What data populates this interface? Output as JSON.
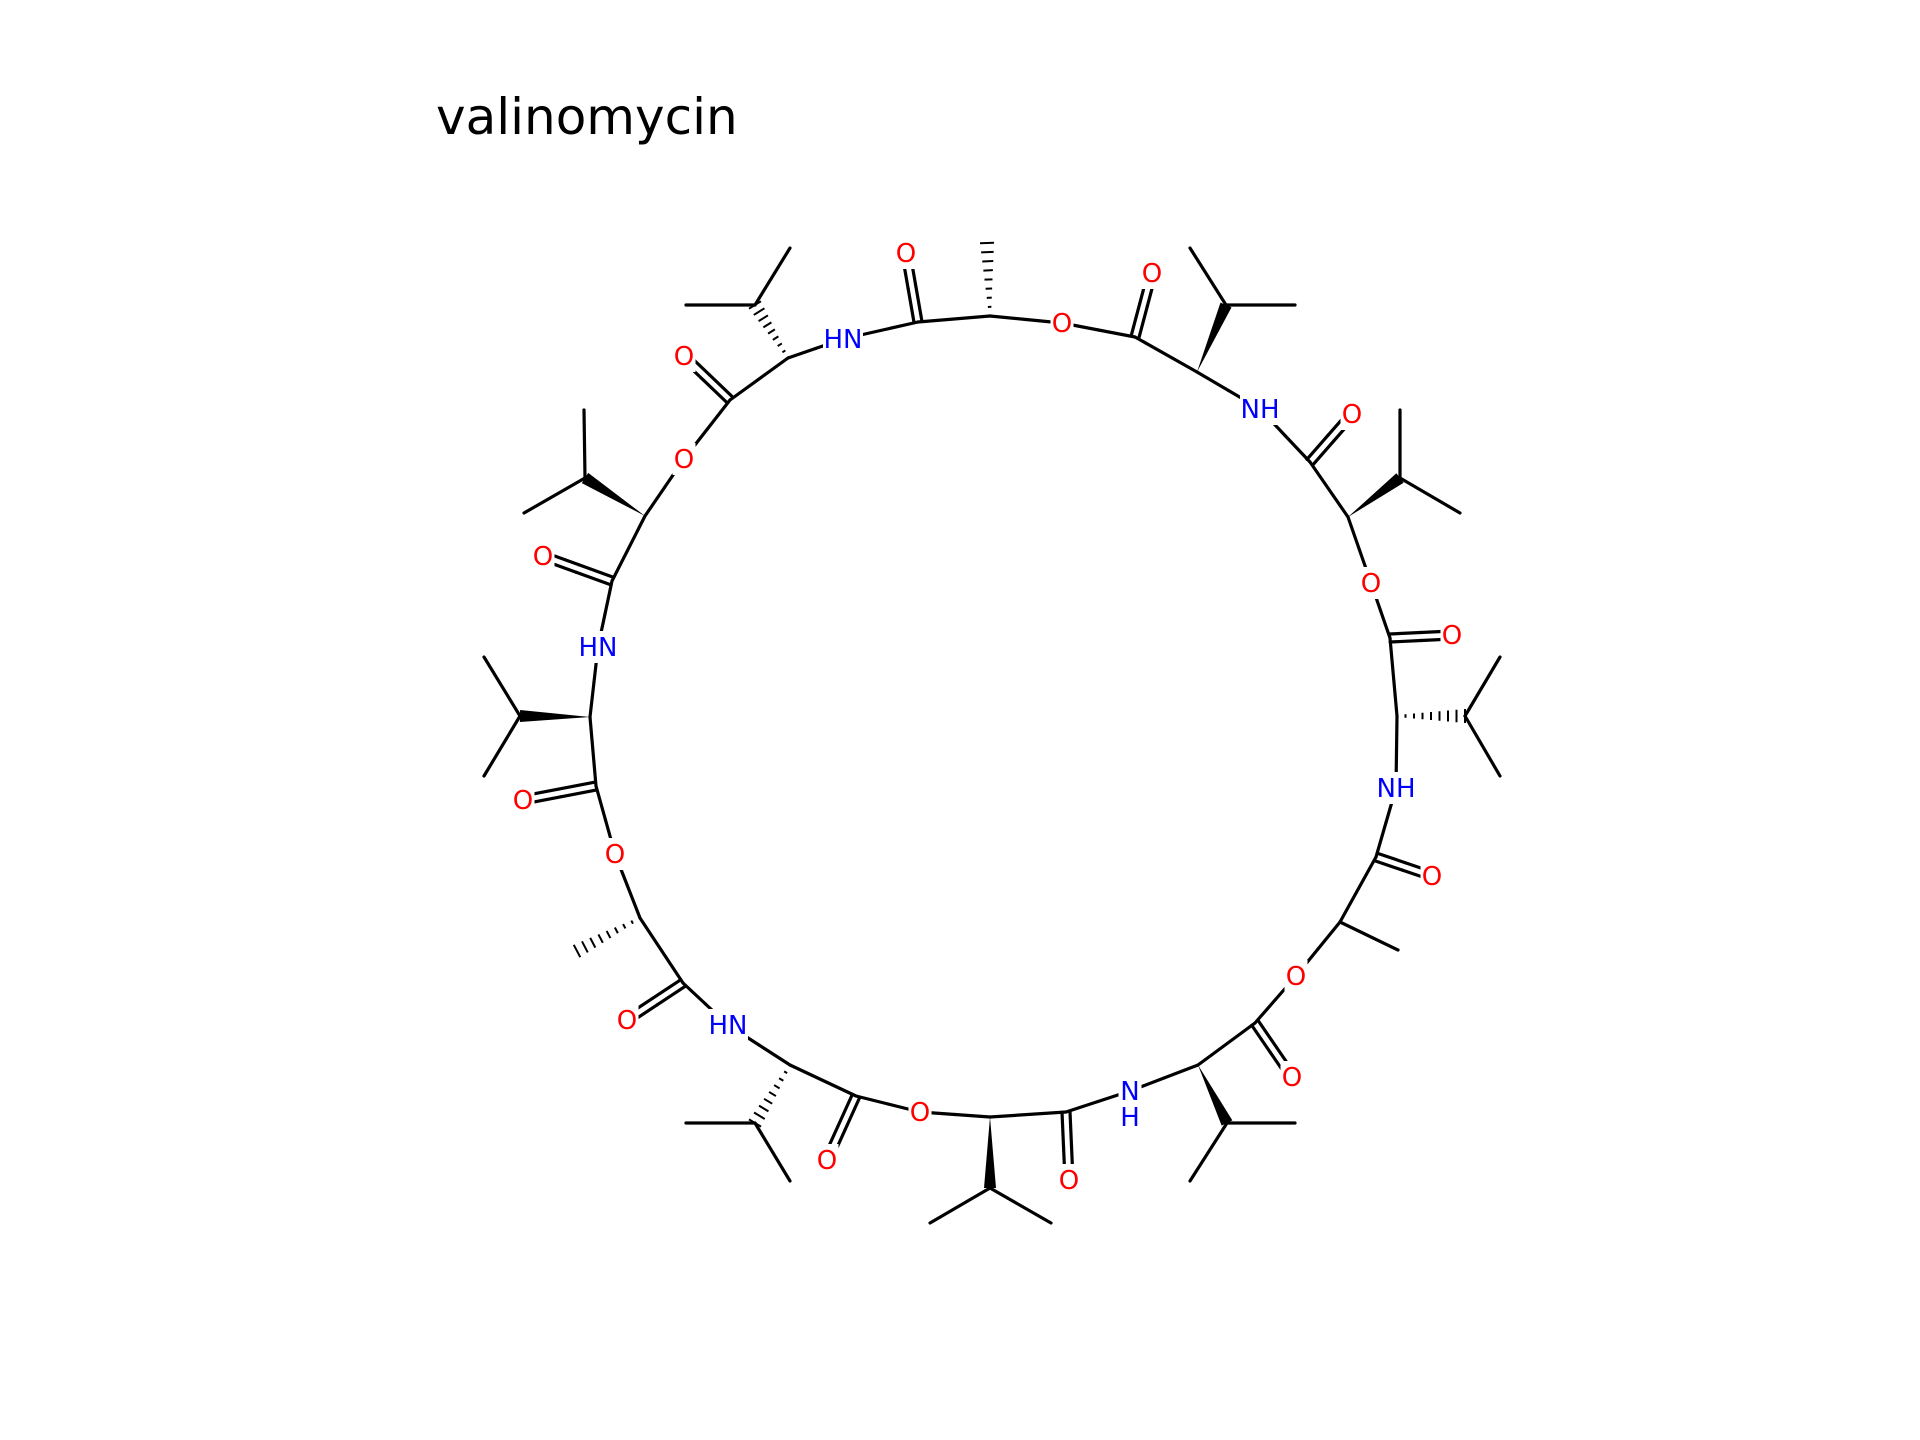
{
  "title": "valinomycin",
  "colors": {
    "bond": "#000000",
    "O": "#ff0000",
    "N": "#0000ff"
  },
  "atom_labels": {
    "O": "O",
    "NH": "NH",
    "HN": "HN",
    "N": "N",
    "H": "H"
  }
}
